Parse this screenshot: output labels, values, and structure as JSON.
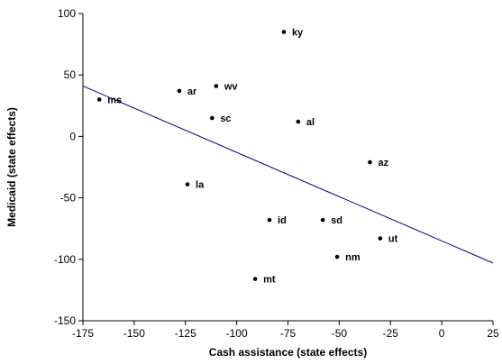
{
  "chart_data": {
    "type": "scatter",
    "title": "",
    "xlabel": "Cash assistance (state effects)",
    "ylabel": "Medicaid (state effects)",
    "xlim": [
      -175,
      25
    ],
    "ylim": [
      -150,
      100
    ],
    "xticks": [
      -175,
      -150,
      -125,
      -100,
      -75,
      -50,
      -25,
      0,
      25
    ],
    "yticks": [
      100,
      50,
      0,
      -50,
      -100,
      -150
    ],
    "grid": false,
    "point_color": "#000000",
    "line_color": "#000080",
    "fit_line": {
      "x": [
        -175,
        25
      ],
      "y": [
        41,
        -103
      ]
    },
    "points": [
      {
        "label": "ky",
        "x": -77,
        "y": 85
      },
      {
        "label": "wv",
        "x": -110,
        "y": 41
      },
      {
        "label": "ar",
        "x": -128,
        "y": 37
      },
      {
        "label": "ms",
        "x": -167,
        "y": 30
      },
      {
        "label": "sc",
        "x": -112,
        "y": 15
      },
      {
        "label": "al",
        "x": -70,
        "y": 12
      },
      {
        "label": "az",
        "x": -35,
        "y": -21
      },
      {
        "label": "la",
        "x": -124,
        "y": -39
      },
      {
        "label": "id",
        "x": -84,
        "y": -68
      },
      {
        "label": "sd",
        "x": -58,
        "y": -68
      },
      {
        "label": "ut",
        "x": -30,
        "y": -83
      },
      {
        "label": "nm",
        "x": -51,
        "y": -98
      },
      {
        "label": "mt",
        "x": -91,
        "y": -116
      }
    ]
  }
}
